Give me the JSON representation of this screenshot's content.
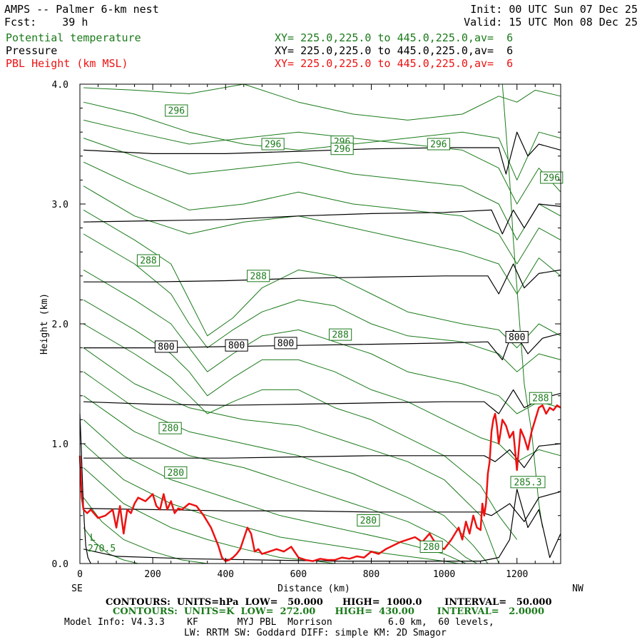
{
  "header": {
    "title": "AMPS -- Palmer 6-km nest",
    "init": "Init: 00 UTC Sun 07 Dec 25",
    "fcst": "Fcst:    39 h",
    "valid": "Valid: 15 UTC Mon 08 Dec 25",
    "rows": [
      {
        "label": "Potential temperature",
        "xy": "XY= 225.0,225.0 to 445.0,225.0,av=  6",
        "color": "#1a7a1a"
      },
      {
        "label": "Pressure",
        "xy": "XY= 225.0,225.0 to 445.0,225.0,av=  6",
        "color": "#000000"
      },
      {
        "label": "PBL Height (km MSL)",
        "xy": "XY= 225.0,225.0 to 445.0,225.0,av=  6",
        "color": "#ee1111"
      }
    ]
  },
  "footer": {
    "line1": "CONTOURS:  UNITS=hPa  LOW=   50.000      HIGH=  1000.0       INTERVAL=   50.000",
    "line2": "CONTOURS:  UNITS=K  LOW=  272.00      HIGH=  430.00       INTERVAL=   2.0000",
    "line3": "Model Info: V4.3.3    KF       MYJ PBL  Morrison          6.0 km,  60 levels,",
    "line4": "LW: RRTM SW: Goddard DIFF: simple KM: 2D Smagor"
  },
  "chart_data": {
    "type": "line",
    "title": "",
    "xlabel": "Distance (km)",
    "ylabel": "Height (km)",
    "xlim": [
      0,
      1320
    ],
    "ylim": [
      0.0,
      4.0
    ],
    "x_ticks": [
      0,
      200,
      400,
      600,
      800,
      1000,
      1200
    ],
    "x_tick_labels": [
      "0",
      "200",
      "400",
      "600",
      "800",
      "1000",
      "1200"
    ],
    "y_ticks": [
      0.0,
      1.0,
      2.0,
      3.0,
      4.0
    ],
    "y_tick_labels": [
      "0.0",
      "1.0",
      "2.0",
      "3.0",
      "4.0"
    ],
    "left_end_label": "SE",
    "right_end_label": "NW",
    "colors": {
      "theta": "#1a7a1a",
      "pressure": "#000000",
      "pbl": "#ee1111"
    },
    "pressure_contours": [
      {
        "x": [
          10,
          200,
          400,
          600,
          800,
          1000,
          1150,
          1170,
          1200,
          1230,
          1260,
          1320
        ],
        "y": [
          3.45,
          3.42,
          3.42,
          3.44,
          3.46,
          3.47,
          3.47,
          3.25,
          3.6,
          3.4,
          3.5,
          3.45
        ]
      },
      {
        "x": [
          10,
          200,
          400,
          600,
          800,
          1000,
          1130,
          1160,
          1190,
          1220,
          1260,
          1320
        ],
        "y": [
          2.85,
          2.86,
          2.87,
          2.9,
          2.92,
          2.93,
          2.95,
          2.75,
          2.95,
          2.8,
          3.0,
          2.98
        ]
      },
      {
        "x": [
          10,
          200,
          400,
          600,
          800,
          1000,
          1120,
          1150,
          1190,
          1220,
          1260,
          1320
        ],
        "y": [
          2.35,
          2.35,
          2.36,
          2.38,
          2.39,
          2.4,
          2.4,
          2.25,
          2.5,
          2.3,
          2.42,
          2.45
        ]
      },
      {
        "x": [
          10,
          200,
          400,
          600,
          800,
          1000,
          1120,
          1160,
          1190,
          1230,
          1270,
          1320
        ],
        "y": [
          1.8,
          1.8,
          1.81,
          1.82,
          1.83,
          1.84,
          1.85,
          1.7,
          1.95,
          1.75,
          1.88,
          1.92
        ]
      },
      {
        "x": [
          10,
          200,
          400,
          600,
          800,
          1000,
          1110,
          1150,
          1190,
          1220,
          1270,
          1320
        ],
        "y": [
          1.35,
          1.33,
          1.32,
          1.33,
          1.34,
          1.35,
          1.35,
          1.25,
          1.45,
          1.3,
          1.38,
          1.42
        ]
      },
      {
        "x": [
          10,
          200,
          400,
          600,
          800,
          1000,
          1110,
          1140,
          1180,
          1220,
          1260,
          1320
        ],
        "y": [
          0.88,
          0.88,
          0.88,
          0.89,
          0.9,
          0.9,
          0.9,
          0.85,
          0.95,
          0.8,
          0.98,
          1.0
        ]
      },
      {
        "x": [
          10,
          200,
          400,
          600,
          800,
          1000,
          1100,
          1130,
          1180,
          1220,
          1260,
          1320
        ],
        "y": [
          0.46,
          0.45,
          0.44,
          0.44,
          0.43,
          0.43,
          0.43,
          0.4,
          0.5,
          0.35,
          0.55,
          0.6
        ]
      },
      {
        "x": [
          10,
          100,
          300,
          500,
          700,
          900,
          1100,
          1150,
          1180,
          1200,
          1230,
          1260,
          1290,
          1320
        ],
        "y": [
          0.12,
          0.06,
          0.04,
          0.03,
          0.02,
          0.02,
          0.02,
          0.05,
          0.2,
          0.62,
          0.3,
          0.45,
          0.05,
          0.25
        ]
      },
      {
        "x": [
          0,
          4,
          8,
          12,
          16,
          22,
          30
        ],
        "y": [
          1.25,
          0.95,
          0.6,
          0.35,
          0.15,
          0.05,
          0.0
        ]
      }
    ],
    "theta_contours": [
      {
        "x": [
          10,
          150,
          300,
          450,
          600,
          750,
          900,
          1050,
          1150,
          1200,
          1250,
          1320
        ],
        "y": [
          3.97,
          3.95,
          3.92,
          4.0,
          3.85,
          3.75,
          3.7,
          3.75,
          3.9,
          3.85,
          3.95,
          3.9
        ]
      },
      {
        "x": [
          10,
          150,
          300,
          450,
          600,
          750,
          900,
          1050,
          1150,
          1200,
          1260,
          1320
        ],
        "y": [
          3.85,
          3.75,
          3.6,
          3.5,
          3.45,
          3.5,
          3.55,
          3.6,
          3.55,
          3.2,
          3.6,
          3.55
        ]
      },
      {
        "x": [
          10,
          150,
          300,
          450,
          600,
          750,
          900,
          1050,
          1150,
          1200,
          1260,
          1320
        ],
        "y": [
          3.7,
          3.6,
          3.5,
          3.55,
          3.6,
          3.55,
          3.5,
          3.45,
          3.3,
          3.0,
          3.3,
          3.1
        ]
      },
      {
        "x": [
          10,
          150,
          300,
          450,
          600,
          750,
          900,
          1050,
          1150,
          1200,
          1260,
          1320
        ],
        "y": [
          3.55,
          3.4,
          3.25,
          3.3,
          3.35,
          3.25,
          3.2,
          3.15,
          3.0,
          2.7,
          3.0,
          2.9
        ]
      },
      {
        "x": [
          10,
          150,
          300,
          450,
          600,
          750,
          900,
          1050,
          1150,
          1200,
          1260,
          1320
        ],
        "y": [
          3.35,
          3.15,
          2.95,
          3.0,
          3.1,
          3.0,
          2.95,
          2.9,
          2.75,
          2.5,
          2.8,
          2.7
        ]
      },
      {
        "x": [
          10,
          150,
          300,
          450,
          600,
          750,
          900,
          1050,
          1150,
          1200,
          1260,
          1320
        ],
        "y": [
          3.15,
          2.9,
          2.75,
          2.85,
          2.9,
          2.8,
          2.7,
          2.6,
          2.5,
          2.25,
          2.55,
          2.4
        ]
      },
      {
        "x": [
          10,
          150,
          250,
          300,
          350,
          420,
          500,
          600,
          700,
          800,
          900,
          1050,
          1150,
          1200,
          1260,
          1320
        ],
        "y": [
          2.95,
          2.7,
          2.5,
          2.2,
          1.9,
          2.05,
          2.3,
          2.45,
          2.4,
          2.25,
          2.1,
          2.0,
          1.95,
          1.8,
          2.0,
          1.9
        ]
      },
      {
        "x": [
          10,
          150,
          250,
          300,
          350,
          420,
          500,
          600,
          700,
          800,
          900,
          1050,
          1150,
          1200,
          1260,
          1320
        ],
        "y": [
          2.75,
          2.5,
          2.25,
          2.0,
          1.8,
          1.95,
          2.1,
          2.2,
          2.15,
          2.0,
          1.9,
          1.85,
          1.75,
          1.6,
          1.75,
          1.7
        ]
      },
      {
        "x": [
          10,
          150,
          250,
          300,
          350,
          420,
          500,
          600,
          700,
          800,
          900,
          1050,
          1150,
          1200,
          1260,
          1320
        ],
        "y": [
          2.45,
          2.2,
          2.0,
          1.8,
          1.6,
          1.75,
          1.9,
          1.95,
          1.85,
          1.75,
          1.6,
          1.5,
          1.4,
          1.25,
          1.35,
          1.3
        ]
      },
      {
        "x": [
          10,
          150,
          250,
          300,
          350,
          420,
          500,
          600,
          700,
          800,
          900,
          1000,
          1100,
          1150,
          1200,
          1260,
          1320
        ],
        "y": [
          2.2,
          1.95,
          1.75,
          1.6,
          1.4,
          1.55,
          1.7,
          1.7,
          1.6,
          1.45,
          1.35,
          1.2,
          1.05,
          1.0,
          0.85,
          0.95,
          0.9
        ]
      },
      {
        "x": [
          10,
          150,
          250,
          300,
          350,
          420,
          500,
          600,
          700,
          800,
          900,
          1000,
          1100,
          1150,
          1200
        ],
        "y": [
          2.0,
          1.75,
          1.55,
          1.4,
          1.25,
          1.35,
          1.45,
          1.45,
          1.3,
          1.2,
          1.05,
          0.9,
          0.65,
          0.4,
          0.2
        ]
      },
      {
        "x": [
          10,
          150,
          300,
          450,
          600,
          750,
          900,
          1000,
          1100,
          1150
        ],
        "y": [
          1.8,
          1.5,
          1.3,
          1.2,
          1.15,
          1.0,
          0.85,
          0.7,
          0.4,
          0.0
        ]
      },
      {
        "x": [
          10,
          150,
          300,
          450,
          600,
          750,
          900,
          1000,
          1080,
          1120
        ],
        "y": [
          1.6,
          1.3,
          1.1,
          1.0,
          0.9,
          0.75,
          0.55,
          0.4,
          0.15,
          0.0
        ]
      },
      {
        "x": [
          10,
          150,
          300,
          450,
          600,
          750,
          900,
          1000,
          1060,
          1090
        ],
        "y": [
          1.4,
          1.1,
          0.9,
          0.8,
          0.65,
          0.5,
          0.35,
          0.2,
          0.05,
          0.0
        ]
      },
      {
        "x": [
          10,
          120,
          250,
          400,
          550,
          700,
          850,
          1000,
          1060
        ],
        "y": [
          1.2,
          0.9,
          0.7,
          0.55,
          0.4,
          0.3,
          0.2,
          0.08,
          0.0
        ]
      },
      {
        "x": [
          10,
          120,
          250,
          400,
          550,
          700,
          850,
          1000,
          1040
        ],
        "y": [
          1.0,
          0.7,
          0.5,
          0.35,
          0.22,
          0.15,
          0.08,
          0.02,
          0.0
        ]
      },
      {
        "x": [
          10,
          120,
          250,
          350,
          450,
          550,
          650,
          700
        ],
        "y": [
          0.8,
          0.5,
          0.3,
          0.2,
          0.12,
          0.05,
          0.02,
          0.0
        ]
      },
      {
        "x": [
          10,
          60,
          120,
          200,
          280,
          350
        ],
        "y": [
          0.55,
          0.35,
          0.2,
          0.1,
          0.03,
          0.0
        ]
      },
      {
        "x": [
          10,
          40,
          80,
          120,
          160
        ],
        "y": [
          0.3,
          0.18,
          0.08,
          0.03,
          0.0
        ]
      },
      {
        "x": [
          1160,
          1170,
          1180,
          1190,
          1200,
          1210,
          1220,
          1230,
          1240,
          1250,
          1260,
          1270
        ],
        "y": [
          4.0,
          3.6,
          3.2,
          2.7,
          2.3,
          1.9,
          1.5,
          1.3,
          1.1,
          0.8,
          0.5,
          0.3
        ]
      }
    ],
    "theta_labels": [
      {
        "text": "296",
        "x": 265,
        "y": 3.78
      },
      {
        "text": "296",
        "x": 530,
        "y": 3.5
      },
      {
        "text": "296",
        "x": 720,
        "y": 3.52
      },
      {
        "text": "296",
        "x": 720,
        "y": 3.46
      },
      {
        "text": "296",
        "x": 985,
        "y": 3.5
      },
      {
        "text": "296",
        "x": 1295,
        "y": 3.22
      },
      {
        "text": "288",
        "x": 188,
        "y": 2.53
      },
      {
        "text": "288",
        "x": 490,
        "y": 2.4
      },
      {
        "text": "288",
        "x": 715,
        "y": 1.91
      },
      {
        "text": "288",
        "x": 1265,
        "y": 1.38
      },
      {
        "text": "280",
        "x": 248,
        "y": 1.13
      },
      {
        "text": "280",
        "x": 263,
        "y": 0.76
      },
      {
        "text": "280",
        "x": 792,
        "y": 0.36
      },
      {
        "text": "280",
        "x": 965,
        "y": 0.14
      },
      {
        "text": "285.3",
        "x": 1230,
        "y": 0.68
      }
    ],
    "pressure_labels": [
      {
        "text": "800",
        "x": 237,
        "y": 1.81
      },
      {
        "text": "800",
        "x": 430,
        "y": 1.82
      },
      {
        "text": "800",
        "x": 565,
        "y": 1.84
      },
      {
        "text": "800",
        "x": 1200,
        "y": 1.89
      }
    ],
    "annotations": [
      {
        "text": "L",
        "x": 35,
        "y": 0.19
      },
      {
        "text": "270.5",
        "x": 60,
        "y": 0.1
      }
    ],
    "pbl_height": {
      "name": "PBL Height (km MSL)",
      "x": [
        0,
        5,
        10,
        20,
        30,
        50,
        70,
        90,
        100,
        110,
        120,
        130,
        140,
        150,
        160,
        180,
        200,
        210,
        220,
        230,
        240,
        250,
        260,
        270,
        280,
        300,
        320,
        340,
        360,
        380,
        390,
        400,
        410,
        420,
        430,
        440,
        460,
        470,
        480,
        490,
        500,
        520,
        540,
        560,
        580,
        600,
        620,
        640,
        660,
        680,
        700,
        720,
        740,
        760,
        780,
        800,
        820,
        840,
        860,
        880,
        900,
        920,
        940,
        960,
        980,
        1000,
        1020,
        1040,
        1050,
        1060,
        1070,
        1080,
        1090,
        1100,
        1105,
        1110,
        1115,
        1120,
        1125,
        1130,
        1135,
        1140,
        1145,
        1150,
        1155,
        1160,
        1170,
        1180,
        1190,
        1200,
        1210,
        1220,
        1230,
        1240,
        1250,
        1260,
        1270,
        1280,
        1290,
        1300,
        1310,
        1320
      ],
      "y": [
        0.9,
        0.55,
        0.45,
        0.42,
        0.45,
        0.38,
        0.4,
        0.45,
        0.3,
        0.48,
        0.25,
        0.45,
        0.42,
        0.5,
        0.55,
        0.52,
        0.58,
        0.48,
        0.45,
        0.58,
        0.45,
        0.52,
        0.42,
        0.46,
        0.45,
        0.5,
        0.48,
        0.4,
        0.3,
        0.15,
        0.05,
        0.02,
        0.03,
        0.05,
        0.08,
        0.12,
        0.3,
        0.25,
        0.1,
        0.12,
        0.08,
        0.1,
        0.12,
        0.1,
        0.14,
        0.05,
        0.03,
        0.02,
        0.04,
        0.03,
        0.03,
        0.05,
        0.04,
        0.06,
        0.05,
        0.1,
        0.08,
        0.12,
        0.15,
        0.18,
        0.2,
        0.22,
        0.18,
        0.25,
        0.15,
        0.12,
        0.2,
        0.3,
        0.2,
        0.35,
        0.25,
        0.4,
        0.3,
        0.28,
        0.5,
        0.4,
        0.5,
        0.75,
        0.85,
        1.1,
        1.2,
        1.25,
        1.15,
        1.0,
        1.1,
        1.2,
        1.15,
        1.05,
        1.1,
        0.78,
        1.12,
        1.05,
        0.95,
        1.1,
        1.2,
        1.3,
        1.32,
        1.25,
        1.3,
        1.28,
        1.32,
        1.3
      ]
    }
  }
}
